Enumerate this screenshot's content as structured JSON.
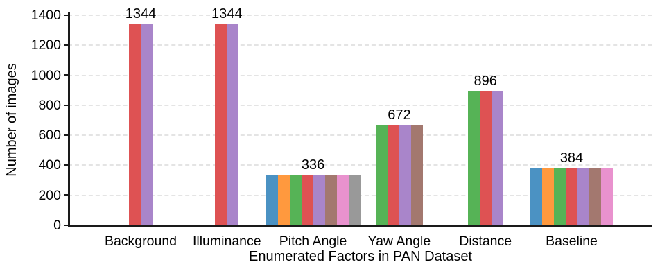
{
  "chart_data": {
    "type": "bar",
    "title": "",
    "xlabel": "Enumerated Factors in PAN Dataset",
    "ylabel": "Number of images",
    "ylim": [
      0,
      1400
    ],
    "yticks": [
      0,
      200,
      400,
      600,
      800,
      1000,
      1200,
      1400
    ],
    "grid": "horizontal-dashed",
    "legend": "none",
    "axis_color": "#1a1a1a",
    "gridline_color": "#e4e4e4",
    "text_color": "#000000",
    "palette": {
      "blue": "#4B92C3",
      "orange": "#FF993E",
      "green": "#56B356",
      "red": "#DE5253",
      "purple": "#A985CA",
      "brown": "#A3786F",
      "pink": "#E992CE",
      "gray": "#999999"
    },
    "categories": [
      "Background",
      "Illuminance",
      "Pitch Angle",
      "Yaw Angle",
      "Distance",
      "Baseline"
    ],
    "groups": [
      {
        "category": "Background",
        "value": 1344,
        "value_label": "1344",
        "bars": [
          "red",
          "purple"
        ]
      },
      {
        "category": "Illuminance",
        "value": 1344,
        "value_label": "1344",
        "bars": [
          "red",
          "purple"
        ]
      },
      {
        "category": "Pitch Angle",
        "value": 336,
        "value_label": "336",
        "bars": [
          "blue",
          "orange",
          "green",
          "red",
          "purple",
          "brown",
          "pink",
          "gray"
        ]
      },
      {
        "category": "Yaw Angle",
        "value": 672,
        "value_label": "672",
        "bars": [
          "green",
          "red",
          "purple",
          "brown"
        ]
      },
      {
        "category": "Distance",
        "value": 896,
        "value_label": "896",
        "bars": [
          "green",
          "red",
          "purple"
        ]
      },
      {
        "category": "Baseline",
        "value": 384,
        "value_label": "384",
        "bars": [
          "blue",
          "orange",
          "green",
          "red",
          "purple",
          "brown",
          "pink"
        ]
      }
    ]
  }
}
